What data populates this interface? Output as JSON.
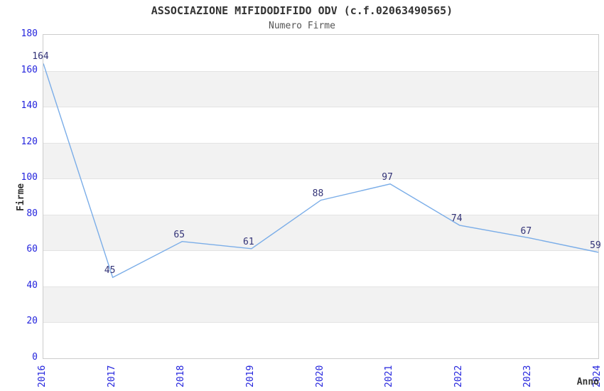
{
  "chart_data": {
    "type": "line",
    "title": "ASSOCIAZIONE MIFIDODIFIDO ODV (c.f.02063490565)",
    "subtitle": "Numero Firme",
    "xlabel": "Anno",
    "ylabel": "Firme",
    "categories": [
      "2016",
      "2017",
      "2018",
      "2019",
      "2020",
      "2021",
      "2022",
      "2023",
      "2024"
    ],
    "series": [
      {
        "name": "Numero Firme",
        "values": [
          164,
          45,
          65,
          61,
          88,
          97,
          74,
          67,
          59
        ]
      }
    ],
    "ylim": [
      0,
      180
    ],
    "ytick_step": 20,
    "yticks": [
      0,
      20,
      40,
      60,
      80,
      100,
      120,
      140,
      160,
      180
    ],
    "legend": "none",
    "grid": "horizontal gridlines every 20 with alternating light-gray bands (20-40, 60-80, 100-120, 140-160)",
    "data_labels": "above each point",
    "colors": {
      "line": "#7aade8",
      "data_label": "#333377",
      "tick_label": "#2424dd",
      "title": "#333333",
      "subtitle": "#555555",
      "axis_title": "#333333",
      "band": "#f2f2f2",
      "gridline": "#e3e3e3",
      "plot_border": "#cccccc",
      "background": "#ffffff"
    }
  }
}
